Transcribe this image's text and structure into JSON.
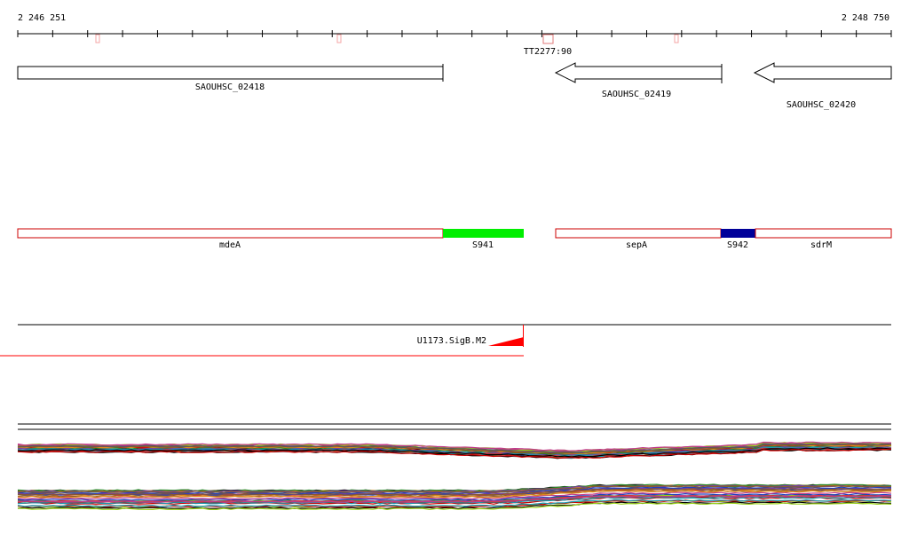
{
  "ruler": {
    "start_label": "2 246 251",
    "end_label": "2 248 750"
  },
  "terminator": {
    "label": "TT2277:90"
  },
  "genes": [
    {
      "label": "SAOUHSC_02418",
      "strand": "+"
    },
    {
      "label": "SAOUHSC_02419",
      "strand": "-"
    },
    {
      "label": "SAOUHSC_02420",
      "strand": "-"
    }
  ],
  "segments": [
    {
      "label": "mdeA",
      "fill": "#ffffff",
      "stroke": "#cc0000"
    },
    {
      "label": "S941",
      "fill": "#00ee00",
      "stroke": "#00ee00"
    },
    {
      "label": "sepA",
      "fill": "#ffffff",
      "stroke": "#cc0000"
    },
    {
      "label": "S942",
      "fill": "#000099",
      "stroke": "#000099"
    },
    {
      "label": "sdrM",
      "fill": "#ffffff",
      "stroke": "#cc0000"
    }
  ],
  "promoter": {
    "label": "U1173.SigB.M2",
    "color": "#ff0000"
  },
  "expression_colors": [
    "#000000",
    "#cc0000",
    "#2a8a2a",
    "#1f3fbf",
    "#9ad21a",
    "#7a3fa0",
    "#e08a1a",
    "#8a5a2a",
    "#1a9ab0",
    "#c23a8a",
    "#5a5a5a",
    "#d23a3a"
  ]
}
